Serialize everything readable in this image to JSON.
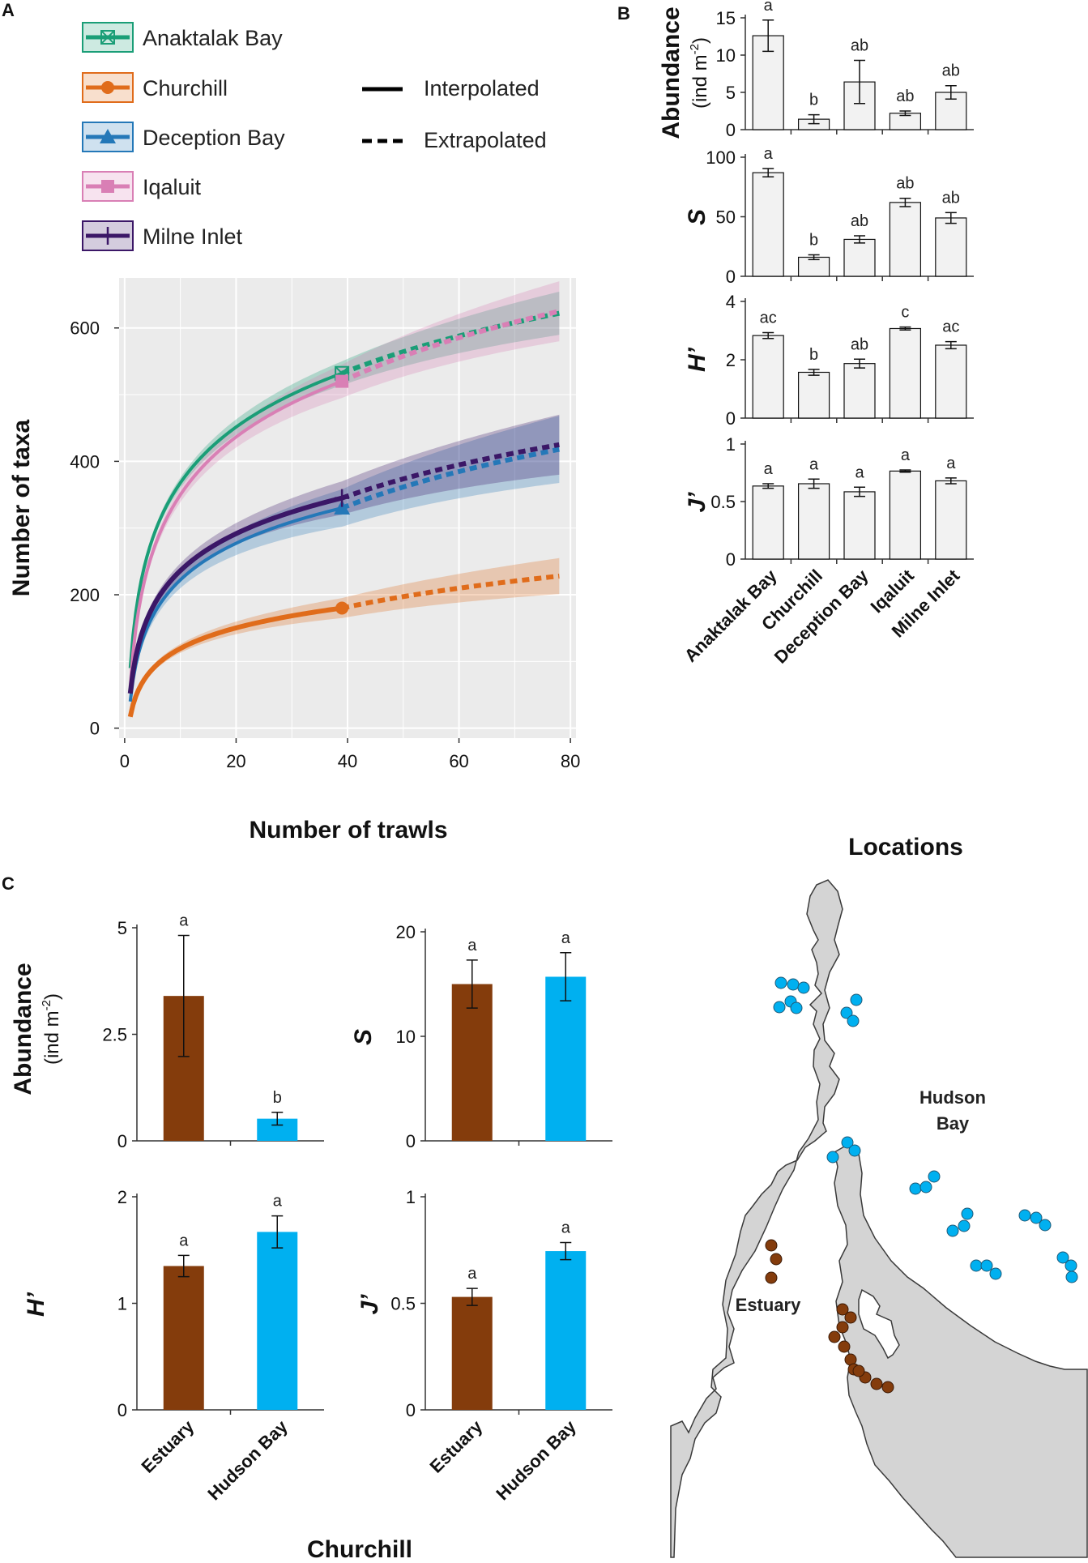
{
  "panel_labels": {
    "a": "A",
    "b": "B",
    "c": "C"
  },
  "colors": {
    "anaktalak": "#1a9e77",
    "churchill": "#e06c1b",
    "deception": "#2478b8",
    "iqaluit": "#d97fb5",
    "milne": "#3b1767",
    "estuary": "#843c0c",
    "hudson": "#00b0f0",
    "bar_fill": "#f2f2f2",
    "land": "#d4d4d4"
  },
  "legend": {
    "sites": [
      {
        "key": "anaktalak",
        "label": "Anaktalak Bay"
      },
      {
        "key": "churchill",
        "label": "Churchill"
      },
      {
        "key": "deception",
        "label": "Deception Bay"
      },
      {
        "key": "iqaluit",
        "label": "Iqaluit"
      },
      {
        "key": "milne",
        "label": "Milne Inlet"
      }
    ],
    "interpolated": "Interpolated",
    "extrapolated": "Extrapolated"
  },
  "chart_data": [
    {
      "id": "A",
      "type": "line",
      "xlabel": "Number of trawls",
      "ylabel": "Number of taxa",
      "xlim": [
        -1,
        81
      ],
      "ylim": [
        -15,
        675
      ],
      "xticks": [
        0,
        20,
        40,
        60,
        80
      ],
      "yticks": [
        0,
        200,
        400,
        600
      ],
      "observed_trawls": 39,
      "max_trawls": 78,
      "series": [
        {
          "name": "Anaktalak Bay",
          "key": "anaktalak",
          "marker": "square-x",
          "start": 90,
          "observed": 532,
          "extrapolated": 622,
          "ci": 18
        },
        {
          "name": "Churchill",
          "key": "churchill",
          "marker": "circle",
          "start": 17,
          "observed": 180,
          "extrapolated": 228,
          "ci": 15
        },
        {
          "name": "Deception Bay",
          "key": "deception",
          "marker": "triangle",
          "start": 40,
          "observed": 330,
          "extrapolated": 418,
          "ci": 28
        },
        {
          "name": "Iqaluit",
          "key": "iqaluit",
          "marker": "square",
          "start": 62,
          "observed": 520,
          "extrapolated": 625,
          "ci": 25
        },
        {
          "name": "Milne Inlet",
          "key": "milne",
          "marker": "plus",
          "start": 52,
          "observed": 345,
          "extrapolated": 425,
          "ci": 25
        }
      ]
    },
    {
      "id": "B",
      "type": "bar",
      "xlabel": "Locations",
      "categories": [
        "Anaktalak Bay",
        "Churchill",
        "Deception Bay",
        "Iqaluit",
        "Milne Inlet"
      ],
      "panels": [
        {
          "ylabel": "Abundance",
          "ylabel_unit": "(ind m",
          "ylabel_sup": "-2",
          "ylabel_close": ")",
          "ylim": [
            0,
            15
          ],
          "ytick_labels": [
            "0",
            "5",
            "10",
            "15"
          ],
          "ytick_values": [
            0,
            5,
            10,
            15
          ],
          "values": [
            12.6,
            1.4,
            6.4,
            2.2,
            5.0
          ],
          "errors": [
            2.1,
            0.6,
            2.9,
            0.3,
            0.9
          ],
          "letters": [
            "a",
            "b",
            "ab",
            "ab",
            "ab"
          ]
        },
        {
          "ylabel": "S",
          "ylim": [
            0,
            100
          ],
          "ytick_labels": [
            "0",
            "50",
            "100"
          ],
          "ytick_values": [
            0,
            50,
            100
          ],
          "values": [
            87,
            16,
            31,
            62,
            49
          ],
          "errors": [
            3.5,
            2,
            3,
            3.5,
            4.5
          ],
          "letters": [
            "a",
            "b",
            "ab",
            "ab",
            "ab"
          ]
        },
        {
          "ylabel": "H’",
          "ylim": [
            0,
            4
          ],
          "ytick_labels": [
            "0",
            "2",
            "4"
          ],
          "ytick_values": [
            0,
            2,
            4
          ],
          "values": [
            2.83,
            1.57,
            1.87,
            3.07,
            2.5
          ],
          "errors": [
            0.1,
            0.1,
            0.15,
            0.05,
            0.12
          ],
          "letters": [
            "ac",
            "b",
            "ab",
            "c",
            "ac"
          ]
        },
        {
          "ylabel": "J’",
          "ylim": [
            0,
            1
          ],
          "ytick_labels": [
            "0",
            "0.5",
            "1"
          ],
          "ytick_values": [
            0,
            0.5,
            1
          ],
          "values": [
            0.635,
            0.655,
            0.585,
            0.765,
            0.68
          ],
          "errors": [
            0.02,
            0.04,
            0.04,
            0.01,
            0.025
          ],
          "letters": [
            "a",
            "a",
            "a",
            "a",
            "a"
          ]
        }
      ]
    },
    {
      "id": "C",
      "type": "bar",
      "xlabel": "Churchill",
      "categories": [
        "Estuary",
        "Hudson Bay"
      ],
      "panels": [
        {
          "ylabel": "Abundance",
          "ylabel_unit": "(ind m",
          "ylabel_sup": "-2",
          "ylabel_close": ")",
          "ylim": [
            0,
            5
          ],
          "ytick_labels": [
            "0",
            "2.5",
            "5"
          ],
          "ytick_values": [
            0,
            2.5,
            5
          ],
          "values": [
            3.4,
            0.52
          ],
          "errors": [
            1.42,
            0.15
          ],
          "letters": [
            "a",
            "b"
          ]
        },
        {
          "ylabel": "S",
          "ylim": [
            0,
            20
          ],
          "ytick_labels": [
            "0",
            "10",
            "20"
          ],
          "ytick_values": [
            0,
            10,
            20
          ],
          "values": [
            15,
            15.7
          ],
          "errors": [
            2.3,
            2.3
          ],
          "letters": [
            "a",
            "a"
          ]
        },
        {
          "ylabel": "H’",
          "ylim": [
            0,
            2
          ],
          "ytick_labels": [
            "0",
            "1",
            "2"
          ],
          "ytick_values": [
            0,
            1,
            2
          ],
          "values": [
            1.35,
            1.67
          ],
          "errors": [
            0.1,
            0.15
          ],
          "letters": [
            "a",
            "a"
          ]
        },
        {
          "ylabel": "J’",
          "ylim": [
            0,
            1
          ],
          "ytick_labels": [
            "0",
            "0.5",
            "1"
          ],
          "ytick_values": [
            0,
            0.5,
            1
          ],
          "values": [
            0.53,
            0.745
          ],
          "errors": [
            0.04,
            0.04
          ],
          "letters": [
            "a",
            "a"
          ]
        }
      ]
    }
  ],
  "map": {
    "label_hudson_1": "Hudson",
    "label_hudson_2": "Bay",
    "label_estuary": "Estuary"
  }
}
